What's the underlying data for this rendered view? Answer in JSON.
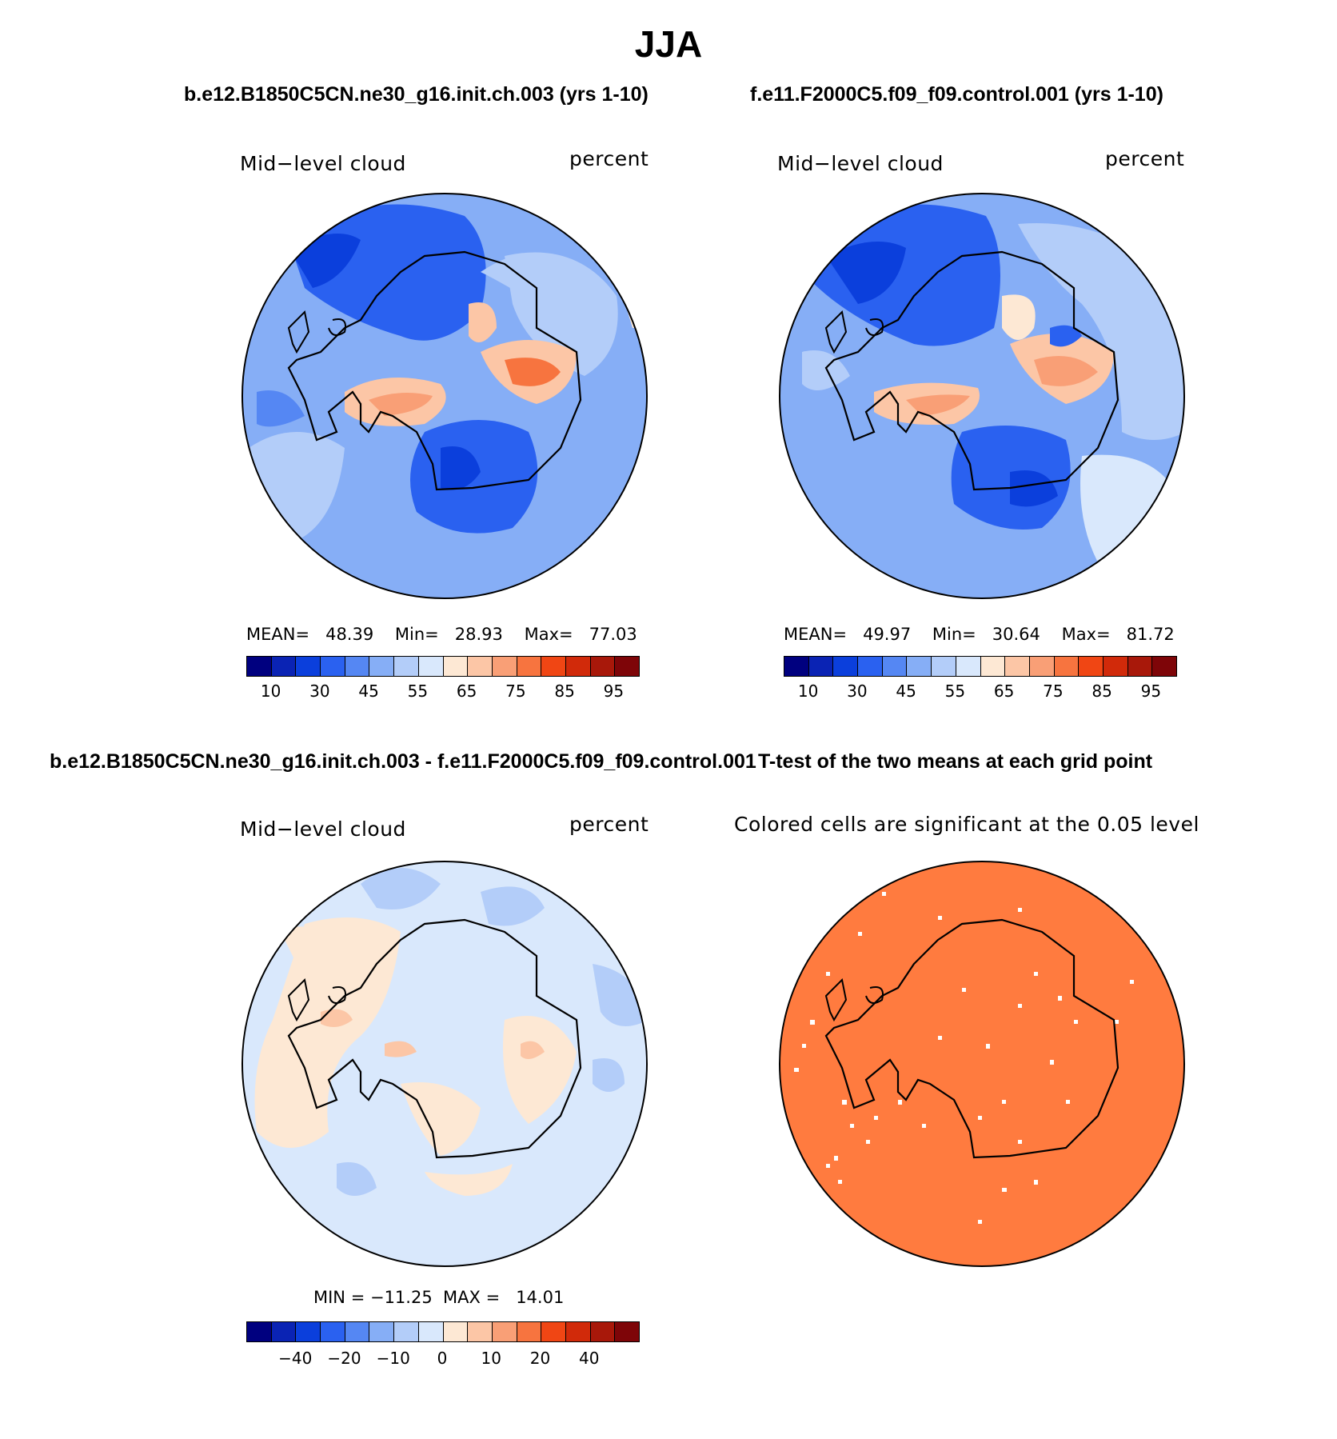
{
  "title": "JJA",
  "panels": {
    "p1": {
      "case": "b.e12.B1850C5CN.ne30_g16.init.ch.003 (yrs 1-10)",
      "left_label": "Mid−level cloud",
      "right_label": "percent",
      "stats": "MEAN=   48.39    Min=   28.93    Max=   77.03"
    },
    "p2": {
      "case": "f.e11.F2000C5.f09_f09.control.001 (yrs 1-10)",
      "left_label": "Mid−level cloud",
      "right_label": "percent",
      "stats": "MEAN=   49.97    Min=   30.64    Max=   81.72"
    },
    "p3": {
      "case": "b.e12.B1850C5CN.ne30_g16.init.ch.003 - f.e11.F2000C5.f09_f09.control.001",
      "left_label": "Mid−level cloud",
      "right_label": "percent",
      "stats": "MIN = −11.25  MAX =   14.01"
    },
    "p4": {
      "case": "T-test of the two means at each grid point",
      "left_label": "Colored cells are significant at the 0.05 level"
    }
  },
  "colorbars": {
    "abs": {
      "colors": [
        "#00007f",
        "#0a23b4",
        "#0b3fdc",
        "#2a61f0",
        "#5587f3",
        "#86aef6",
        "#b3cdf9",
        "#d9e8fc",
        "#fde8d4",
        "#fcc6a6",
        "#f99f76",
        "#f7743f",
        "#f04614",
        "#d12a0a",
        "#a8180a",
        "#7e0508"
      ],
      "ticks": [
        "10",
        "30",
        "45",
        "55",
        "65",
        "75",
        "85",
        "95"
      ]
    },
    "diff": {
      "colors": [
        "#00007f",
        "#0a23b4",
        "#0b3fdc",
        "#2a61f0",
        "#5587f3",
        "#86aef6",
        "#b3cdf9",
        "#d9e8fc",
        "#fde8d4",
        "#fcc6a6",
        "#f99f76",
        "#f7743f",
        "#f04614",
        "#d12a0a",
        "#a8180a",
        "#7e0508"
      ],
      "ticks": [
        "−40",
        "−20",
        "−10",
        "0",
        "10",
        "20",
        "40"
      ]
    }
  },
  "map_colors": {
    "base_abs": "#86aef6",
    "dark_blue": "#2a61f0",
    "mid_blue": "#5587f3",
    "pale_blue": "#b3cdf9",
    "peach": "#fcc6a6",
    "orange": "#f99f76",
    "red_orange": "#f7743f",
    "diff_base": "#d9e8fc",
    "diff_warm": "#fde8d4",
    "ttest": "#ff7b3f"
  }
}
